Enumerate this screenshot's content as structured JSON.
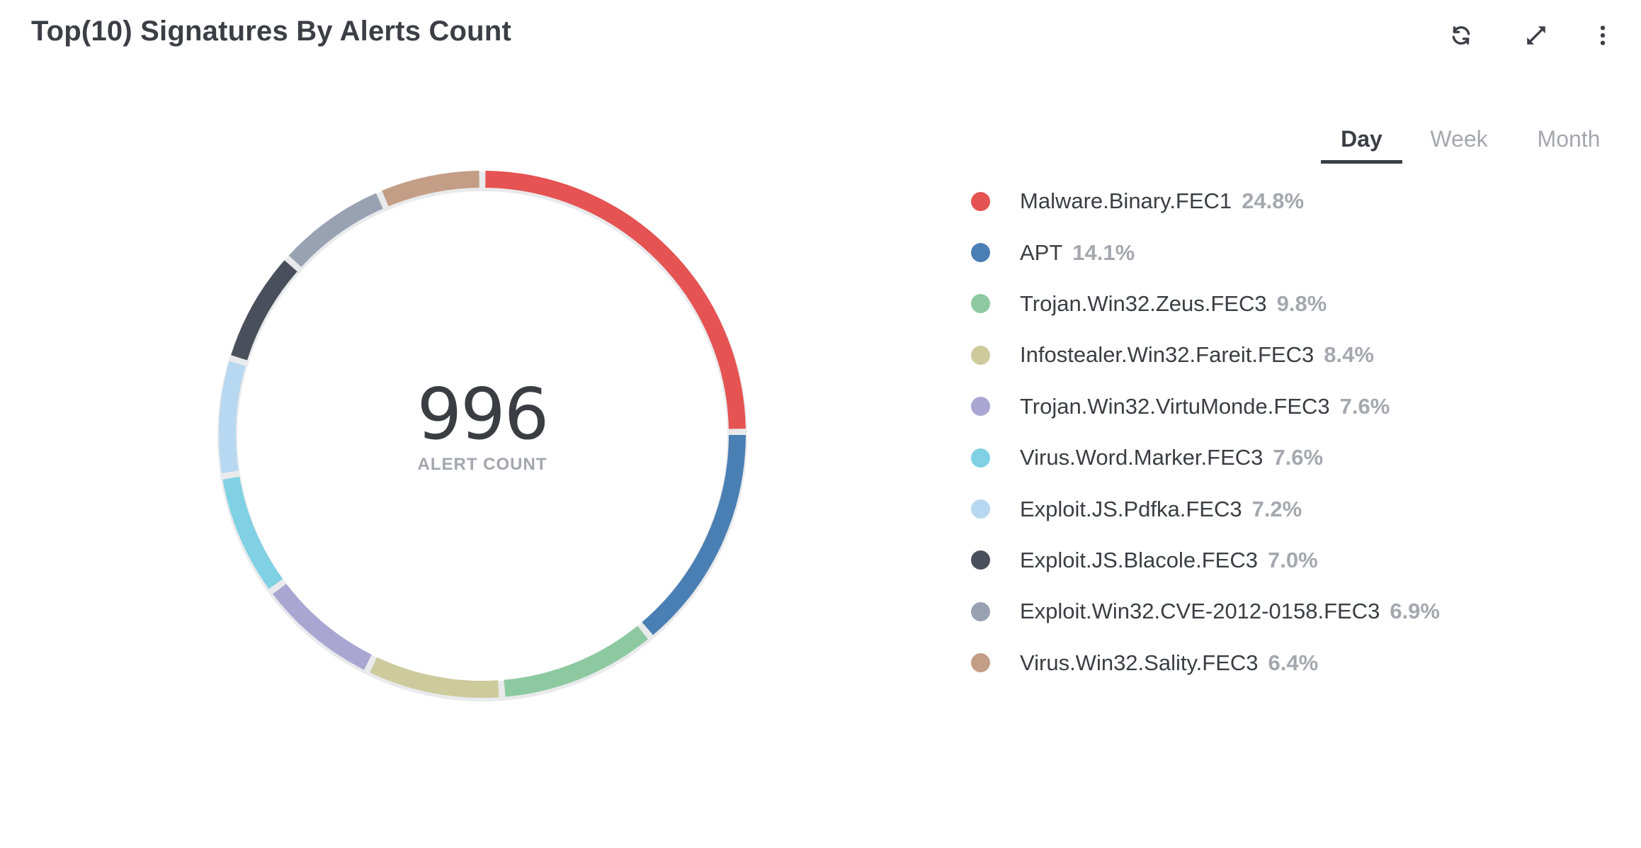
{
  "widget": {
    "title": "Top(10) Signatures By Alerts Count"
  },
  "toolbar": {
    "refresh_icon": "refresh-icon",
    "expand_icon": "expand-icon",
    "more_icon": "more-vertical-icon"
  },
  "tabs": [
    {
      "label": "Day",
      "active": true
    },
    {
      "label": "Week",
      "active": false
    },
    {
      "label": "Month",
      "active": false
    }
  ],
  "center": {
    "value": "996",
    "caption": "ALERT COUNT"
  },
  "legend": [
    {
      "label": "Malware.Binary.FEC1",
      "pct": "24.8%",
      "color": "#e55353"
    },
    {
      "label": "APT",
      "pct": "14.1%",
      "color": "#4a7fb4"
    },
    {
      "label": "Trojan.Win32.Zeus.FEC3",
      "pct": "9.8%",
      "color": "#8dc9a0"
    },
    {
      "label": "Infostealer.Win32.Fareit.FEC3",
      "pct": "8.4%",
      "color": "#cdca9c"
    },
    {
      "label": "Trojan.Win32.VirtuMonde.FEC3",
      "pct": "7.6%",
      "color": "#aaa6d2"
    },
    {
      "label": "Virus.Word.Marker.FEC3",
      "pct": "7.6%",
      "color": "#7fd1e3"
    },
    {
      "label": "Exploit.JS.Pdfka.FEC3",
      "pct": "7.2%",
      "color": "#b7d8f0"
    },
    {
      "label": "Exploit.JS.Blacole.FEC3",
      "pct": "7.0%",
      "color": "#4a505b"
    },
    {
      "label": "Exploit.Win32.CVE-2012-0158.FEC3",
      "pct": "6.9%",
      "color": "#98a2b3"
    },
    {
      "label": "Virus.Win32.Sality.FEC3",
      "pct": "6.4%",
      "color": "#c39d86"
    }
  ],
  "chart_data": {
    "type": "pie",
    "total": 996,
    "categories": [
      "Malware.Binary.FEC1",
      "APT",
      "Trojan.Win32.Zeus.FEC3",
      "Infostealer.Win32.Fareit.FEC3",
      "Trojan.Win32.VirtuMonde.FEC3",
      "Virus.Word.Marker.FEC3",
      "Exploit.JS.Pdfka.FEC3",
      "Exploit.JS.Blacole.FEC3",
      "Exploit.Win32.CVE-2012-0158.FEC3",
      "Virus.Win32.Sality.FEC3"
    ],
    "values": [
      24.8,
      14.1,
      9.8,
      8.4,
      7.6,
      7.6,
      7.2,
      7.0,
      6.9,
      6.4
    ],
    "colors": [
      "#e55353",
      "#4a7fb4",
      "#8dc9a0",
      "#cdca9c",
      "#aaa6d2",
      "#7fd1e3",
      "#b7d8f0",
      "#4a505b",
      "#98a2b3",
      "#c39d86"
    ],
    "title": "Top(10) Signatures By Alerts Count",
    "legend": "right"
  }
}
